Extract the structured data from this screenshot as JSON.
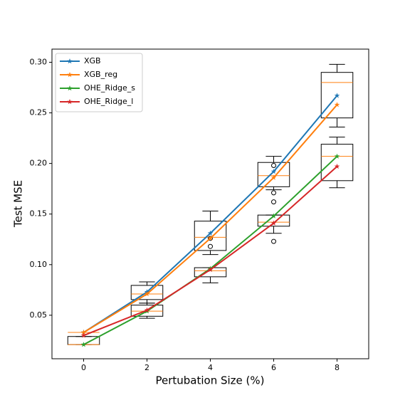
{
  "chart_data": {
    "type": "line",
    "xlabel": "Pertubation Size (%)",
    "ylabel": "Test MSE",
    "x": [
      0,
      2,
      4,
      6,
      8
    ],
    "series": [
      {
        "name": "XGB",
        "color": "#1f77b4",
        "values": [
          0.033,
          0.073,
          0.131,
          0.192,
          0.267
        ]
      },
      {
        "name": "XGB_reg",
        "color": "#ff7f0e",
        "values": [
          0.033,
          0.071,
          0.126,
          0.186,
          0.258
        ]
      },
      {
        "name": "OHE_Ridge_s",
        "color": "#2ca02c",
        "values": [
          0.021,
          0.054,
          0.096,
          0.148,
          0.207
        ]
      },
      {
        "name": "OHE_Ridge_l",
        "color": "#d62728",
        "values": [
          0.03,
          0.055,
          0.095,
          0.141,
          0.197
        ]
      }
    ],
    "boxes": [
      {
        "x": 0,
        "whislo": 0.033,
        "q1": 0.033,
        "med": 0.033,
        "q3": 0.033,
        "whishi": 0.033,
        "fliers": []
      },
      {
        "x": 0,
        "whislo": 0.021,
        "q1": 0.021,
        "med": 0.021,
        "q3": 0.029,
        "whishi": 0.029,
        "fliers": []
      },
      {
        "x": 2,
        "whislo": 0.062,
        "q1": 0.0655,
        "med": 0.071,
        "q3": 0.0795,
        "whishi": 0.083,
        "fliers": []
      },
      {
        "x": 2,
        "whislo": 0.047,
        "q1": 0.049,
        "med": 0.054,
        "q3": 0.06,
        "whishi": 0.062,
        "fliers": []
      },
      {
        "x": 4,
        "whislo": 0.11,
        "q1": 0.114,
        "med": 0.127,
        "q3": 0.143,
        "whishi": 0.153,
        "fliers": [
          0.126,
          0.118
        ]
      },
      {
        "x": 4,
        "whislo": 0.082,
        "q1": 0.088,
        "med": 0.094,
        "q3": 0.097,
        "whishi": 0.097,
        "fliers": []
      },
      {
        "x": 6,
        "whislo": 0.174,
        "q1": 0.177,
        "med": 0.188,
        "q3": 0.201,
        "whishi": 0.207,
        "fliers": [
          0.198,
          0.171,
          0.162
        ]
      },
      {
        "x": 6,
        "whislo": 0.131,
        "q1": 0.138,
        "med": 0.142,
        "q3": 0.149,
        "whishi": 0.149,
        "fliers": [
          0.123
        ]
      },
      {
        "x": 8,
        "whislo": 0.236,
        "q1": 0.245,
        "med": 0.28,
        "q3": 0.29,
        "whishi": 0.298,
        "fliers": []
      },
      {
        "x": 8,
        "whislo": 0.176,
        "q1": 0.183,
        "med": 0.207,
        "q3": 0.219,
        "whishi": 0.226,
        "fliers": []
      }
    ],
    "box_color": "#000000",
    "median_color": "#ff7f0e",
    "xlim": [
      -1,
      9
    ],
    "ylim": [
      0.007,
      0.313
    ],
    "xticks": [
      0,
      2,
      4,
      6,
      8
    ],
    "yticks": [
      0.05,
      {
        "value": 0.1,
        "label": "0.10"
      },
      0.15,
      {
        "value": 0.2,
        "label": "0.20"
      },
      0.25,
      {
        "value": 0.3,
        "label": "0.30"
      }
    ],
    "grid": false,
    "legend": "upper-left"
  }
}
